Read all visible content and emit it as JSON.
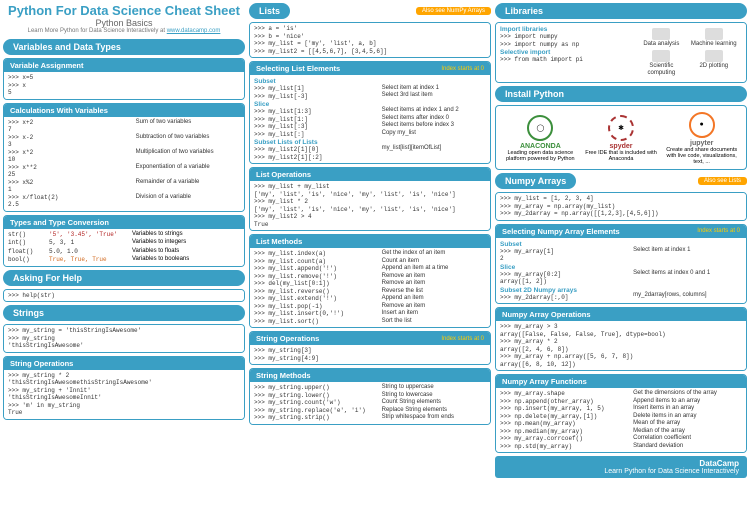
{
  "header": {
    "title": "Python For Data Science Cheat Sheet",
    "subtitle": "Python Basics",
    "linkPrefix": "Learn More Python for Data Science Interactively at",
    "linkText": "www.datacamp.com"
  },
  "pills": {
    "varTypes": "Variables and Data Types",
    "help": "Asking For Help",
    "strings": "Strings",
    "lists": "Lists",
    "numpy": "Numpy Arrays",
    "libs": "Libraries",
    "install": "Install Python"
  },
  "also": {
    "numpyArrays": "Also see NumPy Arrays",
    "lists": "Also see Lists"
  },
  "headers": {
    "varAssign": "Variable Assignment",
    "calc": "Calculations With Variables",
    "types": "Types and Type Conversion",
    "strOps": "String Operations",
    "strOps2": "String Operations",
    "strMeth": "String Methods",
    "selList": "Selecting List Elements",
    "listOps": "List Operations",
    "listMeth": "List Methods",
    "selNumpy": "Selecting Numpy Array Elements",
    "npOps": "Numpy Array Operations",
    "npFuncs": "Numpy Array Functions",
    "idx0": "Index starts at 0"
  },
  "varAssign": ">>> x=5\n>>> x\n5",
  "calc": {
    "code": ">>> x+2\n7\n>>> x-2\n3\n>>> x*2\n10\n>>> x**2\n25\n>>> x%2\n1\n>>> x/float(2)\n2.5",
    "desc1": "Sum of two variables",
    "desc2": "Subtraction of two variables",
    "desc3": "Multiplication of two variables",
    "desc4": "Exponentiation of a variable",
    "desc5": "Remainder of a variable",
    "desc6": "Division of a variable"
  },
  "types": {
    "c1": "str()",
    "v1": "'5', '3.45', 'True'",
    "d1": "Variables to strings",
    "c2": "int()",
    "v2": "5, 3, 1",
    "d2": "Variables to integers",
    "c3": "float()",
    "v3": "5.0, 1.0",
    "d3": "Variables to floats",
    "c4": "bool()",
    "v4": "True, True, True",
    "d4": "Variables to booleans"
  },
  "help": ">>> help(str)",
  "strings": ">>> my_string = 'thisStringIsAwesome'\n>>> my_string\n'thisStringIsAwesome'",
  "strOps": ">>> my_string * 2\n'thisStringIsAwesomethisStringIsAwesome'\n>>> my_string + 'Innit'\n'thisStringIsAwesomeInnit'\n>>> 'm' in my_string\nTrue",
  "listsInit": ">>> a = 'is'\n>>> b = 'nice'\n>>> my_list = ['my', 'list', a, b]\n>>> my_list2 = [[4,5,6,7], [3,4,5,6]]",
  "selList": {
    "code": ">>> my_list[1]\n>>> my_list[-3]",
    "codeSlice": ">>> my_list[1:3]\n>>> my_list[1:]\n>>> my_list[:3]\n>>> my_list[:]",
    "codeLL": ">>> my_list2[1][0]\n>>> my_list2[1][:2]",
    "h1": "Subset",
    "h2": "Slice",
    "h3": "Subset Lists of Lists",
    "d1": "Select item at index 1",
    "d2": "Select 3rd last item",
    "d3": "Select items at index 1 and 2",
    "d4": "Select items after index 0",
    "d5": "Select items before index 3",
    "d6": "Copy my_list",
    "d7": "my_list[list][itemOfList]"
  },
  "listOps": ">>> my_list + my_list\n['my', 'list', 'is', 'nice', 'my', 'list', 'is', 'nice']\n>>> my_list * 2\n['my', 'list', 'is', 'nice', 'my', 'list', 'is', 'nice']\n>>> my_list2 > 4\nTrue",
  "listMeth": {
    "code": ">>> my_list.index(a)\n>>> my_list.count(a)\n>>> my_list.append('!')\n>>> my_list.remove('!')\n>>> del(my_list[0:1])\n>>> my_list.reverse()\n>>> my_list.extend('!')\n>>> my_list.pop(-1)\n>>> my_list.insert(0,'!')\n>>> my_list.sort()",
    "d1": "Get the index of an item",
    "d2": "Count an item",
    "d3": "Append an item at a time",
    "d4": "Remove an item",
    "d5": "Remove an item",
    "d6": "Reverse the list",
    "d7": "Append an item",
    "d8": "Remove an item",
    "d9": "Insert an item",
    "d10": "Sort the list"
  },
  "strOps2": ">>> my_string[3]\n>>> my_string[4:9]",
  "strMeth": {
    "code": ">>> my_string.upper()\n>>> my_string.lower()\n>>> my_string.count('w')\n>>> my_string.replace('e', 'i')\n>>> my_string.strip()",
    "d1": "String to uppercase",
    "d2": "String to lowercase",
    "d3": "Count String elements",
    "d4": "Replace String elements",
    "d5": "Strip whitespace from ends"
  },
  "libs": {
    "h1": "Import libraries",
    "c1": ">>> import numpy\n>>> import numpy as np",
    "h2": "Selective import",
    "c2": ">>> from math import pi",
    "top1": "Data analysis",
    "top2": "Machine learning",
    "bot1": "Scientific computing",
    "bot2": "2D plotting"
  },
  "install": {
    "n1": "ANACONDA",
    "d1": "Leading open data science platform powered by Python",
    "n2": "spyder",
    "d2": "Free IDE that is included with Anaconda",
    "n3": "jupyter",
    "d3": "Create and share documents with live code, visualizations, text, ..."
  },
  "npInit": ">>> my_list = [1, 2, 3, 4]\n>>> my_array = np.array(my_list)\n>>> my_2darray = np.array([[1,2,3],[4,5,6]])",
  "selNp": {
    "h1": "Subset",
    "c1": ">>> my_array[1]\n2",
    "d1": "Select item at index 1",
    "h2": "Slice",
    "c2": ">>> my_array[0:2]\narray([1, 2])",
    "d2": "Select items at index 0 and 1",
    "h3": "Subset 2D Numpy arrays",
    "c3": ">>> my_2darray[:,0]",
    "d3": "my_2darray[rows, columns]"
  },
  "npOps": ">>> my_array > 3\narray([False, False, False, True], dtype=bool)\n>>> my_array * 2\narray([2, 4, 6, 8])\n>>> my_array + np.array([5, 6, 7, 8])\narray([6, 8, 10, 12])",
  "npFuncs": {
    "code": ">>> my_array.shape\n>>> np.append(other_array)\n>>> np.insert(my_array, 1, 5)\n>>> np.delete(my_array,[1])\n>>> np.mean(my_array)\n>>> np.median(my_array)\n>>> my_array.corrcoef()\n>>> np.std(my_array)",
    "d1": "Get the dimensions of the array",
    "d2": "Append items to an array",
    "d3": "Insert items in an array",
    "d4": "Delete items in an array",
    "d5": "Mean of the array",
    "d6": "Median of the array",
    "d7": "Correlation coefficient",
    "d8": "Standard deviation"
  },
  "footer": {
    "brand": "DataCamp",
    "tag": "Learn Python for Data Science Interactively"
  }
}
